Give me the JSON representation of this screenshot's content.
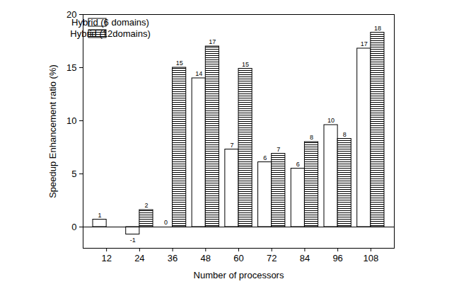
{
  "chart_data": {
    "type": "bar",
    "x_label": "Number of processors",
    "y_label": "Speedup Enhancement ratio (%)",
    "categories": [
      "12",
      "24",
      "36",
      "48",
      "60",
      "72",
      "84",
      "96",
      "108"
    ],
    "series": [
      {
        "name": "Hybrid (6 domains)",
        "color": "#ffffff",
        "values": [
          0.7,
          -0.7,
          0,
          14,
          7.3,
          6.1,
          5.5,
          9.6,
          16.8
        ],
        "value_labels": [
          "1",
          "-1",
          "0",
          "14",
          "7",
          "6",
          "6",
          "10",
          "17"
        ]
      },
      {
        "name": "Hybrid (12domains)",
        "color": "#000000",
        "values": [
          null,
          1.6,
          15,
          17,
          14.9,
          6.9,
          8,
          8.3,
          18.3
        ],
        "value_labels": [
          null,
          "2",
          "15",
          "17",
          "15",
          "7",
          "8",
          "8",
          "18"
        ]
      }
    ],
    "ylim": [
      -2,
      20
    ],
    "yticks": [
      0,
      5,
      10,
      15,
      20
    ],
    "data_labels": true,
    "legend": "upper left"
  }
}
